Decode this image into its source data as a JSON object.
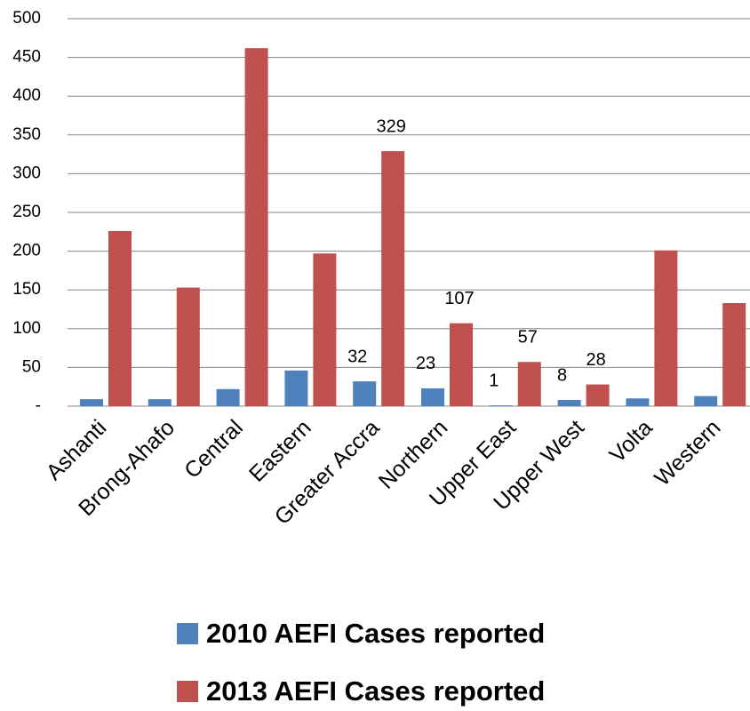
{
  "chart_data": {
    "type": "bar",
    "categories": [
      "Ashanti",
      "Brong-Ahafo",
      "Central",
      "Eastern",
      "Greater Accra",
      "Northern",
      "Upper East",
      "Upper West",
      "Volta",
      "Western"
    ],
    "series": [
      {
        "name": "2010 AEFI Cases reported",
        "color": "#4f81bd",
        "values": [
          9,
          9,
          22,
          46,
          32,
          23,
          1,
          8,
          10,
          13
        ],
        "value_labels": [
          null,
          null,
          null,
          null,
          "32",
          "23",
          "1",
          "8",
          null,
          null
        ]
      },
      {
        "name": "2013 AEFI Cases reported",
        "color": "#c0504d",
        "values": [
          226,
          153,
          462,
          197,
          329,
          107,
          57,
          28,
          201,
          133
        ],
        "value_labels": [
          null,
          null,
          null,
          null,
          "329",
          "107",
          "57",
          "28",
          null,
          null
        ]
      }
    ],
    "ylim": [
      0,
      500
    ],
    "yticks": [
      {
        "value": 0,
        "label": "-"
      },
      50,
      100,
      150,
      200,
      250,
      300,
      350,
      400,
      450,
      500
    ],
    "grid": true,
    "legend": "bottom"
  }
}
